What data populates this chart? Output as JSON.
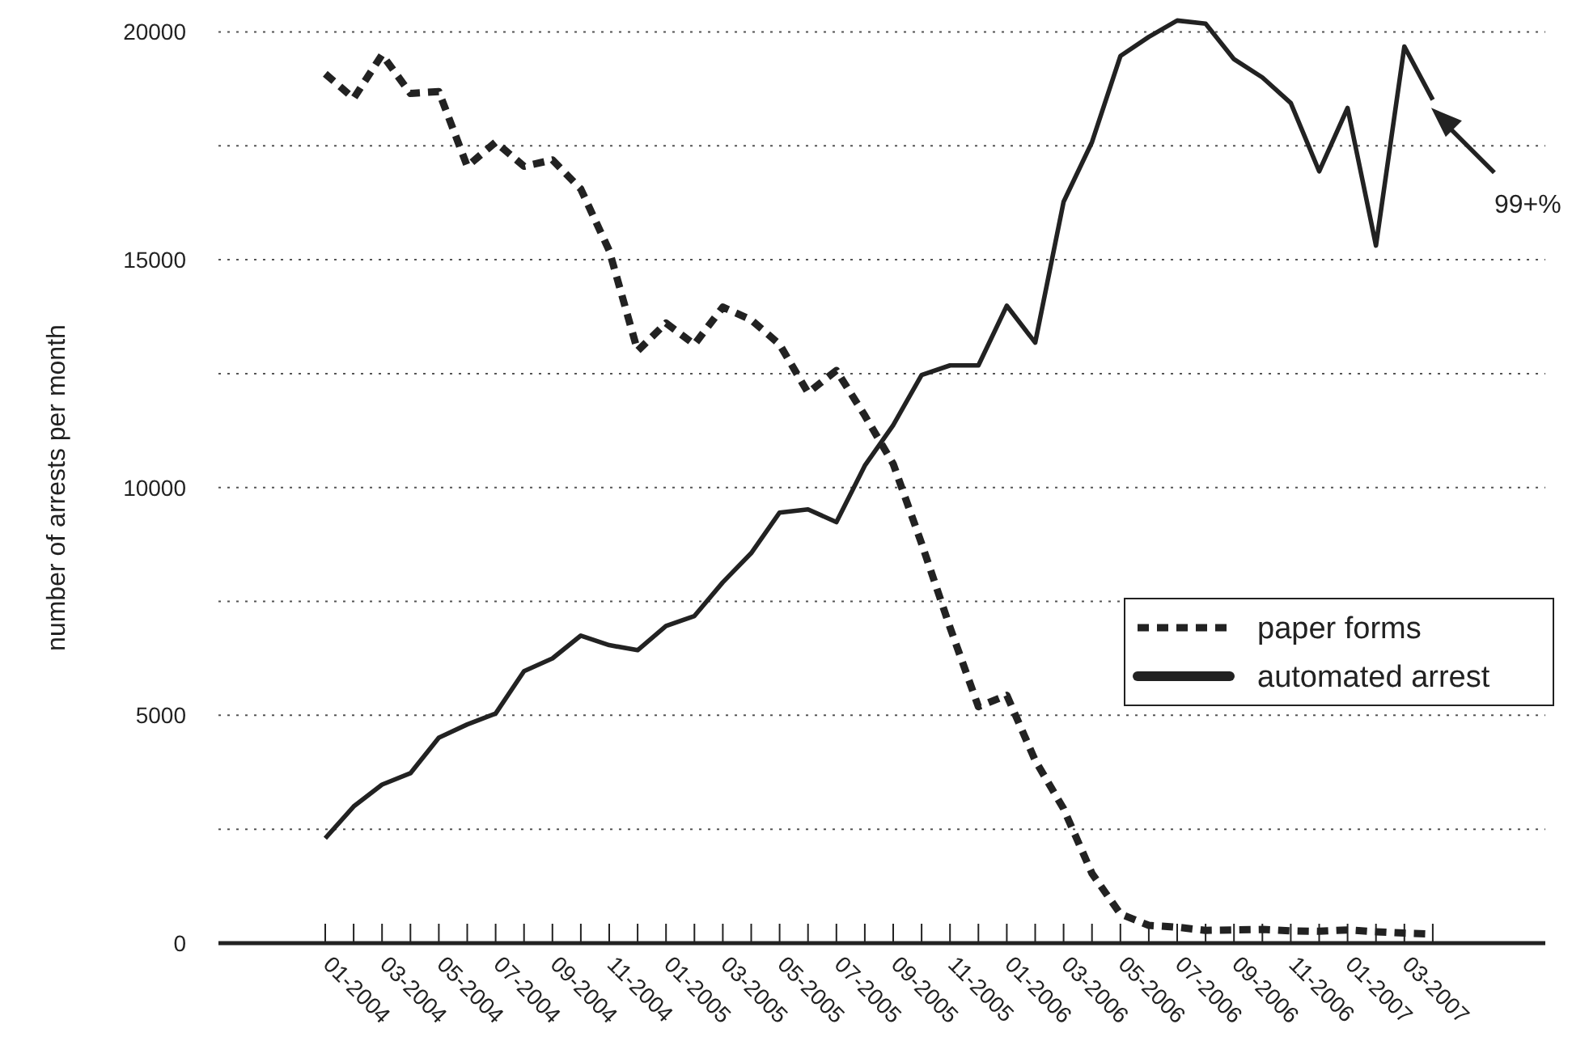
{
  "chart_data": {
    "type": "line",
    "ylabel": "number of arrests per month",
    "categories": [
      "01-2004",
      null,
      "03-2004",
      null,
      "05-2004",
      null,
      "07-2004",
      null,
      "09-2004",
      null,
      "11-2004",
      null,
      "01-2005",
      null,
      "03-2005",
      null,
      "05-2005",
      null,
      "07-2005",
      null,
      "09-2005",
      null,
      "11-2005",
      null,
      "01-2006",
      null,
      "03-2006",
      null,
      "05-2006",
      null,
      "07-2006",
      null,
      "09-2006",
      null,
      "11-2006",
      null,
      "01-2007",
      null,
      "03-2007",
      null
    ],
    "series": [
      {
        "name": "paper forms",
        "color": "#222222",
        "line_style": "dashed",
        "values": [
          19080,
          18540,
          19500,
          18650,
          18690,
          17050,
          17580,
          17050,
          17190,
          16550,
          15200,
          13000,
          13610,
          13140,
          13960,
          13680,
          13140,
          12080,
          12570,
          11580,
          10520,
          8770,
          6930,
          5190,
          5440,
          4010,
          2950,
          1530,
          640,
          390,
          350,
          280,
          290,
          300,
          270,
          260,
          290,
          250,
          220,
          200
        ]
      },
      {
        "name": "automated arrest",
        "color": "#222222",
        "line_style": "solid",
        "values": [
          2300,
          3000,
          3480,
          3730,
          4510,
          4800,
          5040,
          5970,
          6250,
          6750,
          6540,
          6430,
          6960,
          7180,
          7920,
          8560,
          9450,
          9520,
          9240,
          10480,
          11370,
          12470,
          12680,
          12680,
          13990,
          13180,
          16270,
          17580,
          19470,
          19890,
          20250,
          20180,
          19400,
          19000,
          18440,
          16940,
          18330,
          15310,
          19680,
          18510
        ]
      }
    ],
    "ylim": [
      0,
      20700
    ],
    "yticks": [
      0,
      {
        "value": 2500,
        "label": null
      },
      5000,
      {
        "value": 7500,
        "label": null
      },
      10000,
      {
        "value": 12500,
        "label": null
      },
      15000,
      {
        "value": 17500,
        "label": null
      },
      20000
    ],
    "grid": "y",
    "legend": "right",
    "annotations": [
      "99+%"
    ]
  }
}
